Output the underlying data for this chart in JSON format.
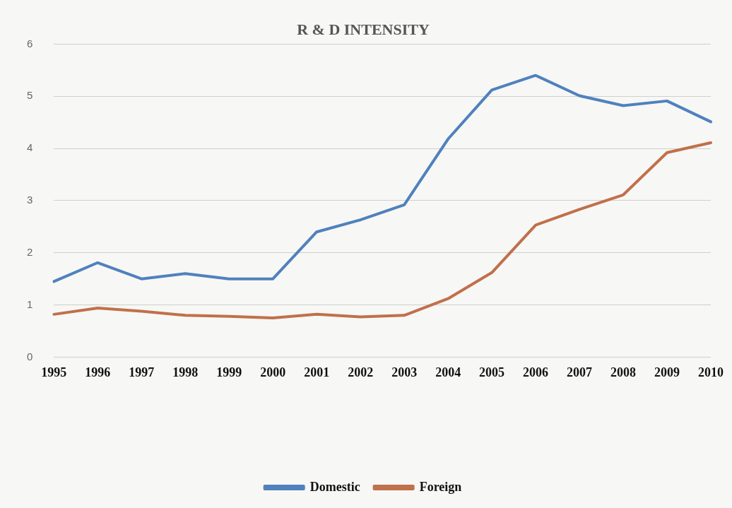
{
  "chart_data": {
    "type": "line",
    "title": "R & D INTENSITY",
    "categories": [
      "1995",
      "1996",
      "1997",
      "1998",
      "1999",
      "2000",
      "2001",
      "2002",
      "2003",
      "2004",
      "2005",
      "2006",
      "2007",
      "2008",
      "2009",
      "2010"
    ],
    "series": [
      {
        "name": "Domestic",
        "color": "#4f81bd",
        "values": [
          1.45,
          1.81,
          1.5,
          1.6,
          1.5,
          1.5,
          2.4,
          2.63,
          2.92,
          4.18,
          5.12,
          5.4,
          5.01,
          4.82,
          4.91,
          4.51
        ]
      },
      {
        "name": "Foreign",
        "color": "#c0704a",
        "values": [
          0.82,
          0.94,
          0.88,
          0.8,
          0.78,
          0.75,
          0.82,
          0.77,
          0.8,
          1.12,
          1.62,
          2.53,
          2.83,
          3.11,
          3.92,
          4.11
        ]
      }
    ],
    "ylim": [
      0,
      6
    ],
    "yticks": [
      0,
      1,
      2,
      3,
      4,
      5,
      6
    ],
    "grid": "y",
    "legend": "bottom",
    "marker": "none",
    "line_style": "solid"
  }
}
